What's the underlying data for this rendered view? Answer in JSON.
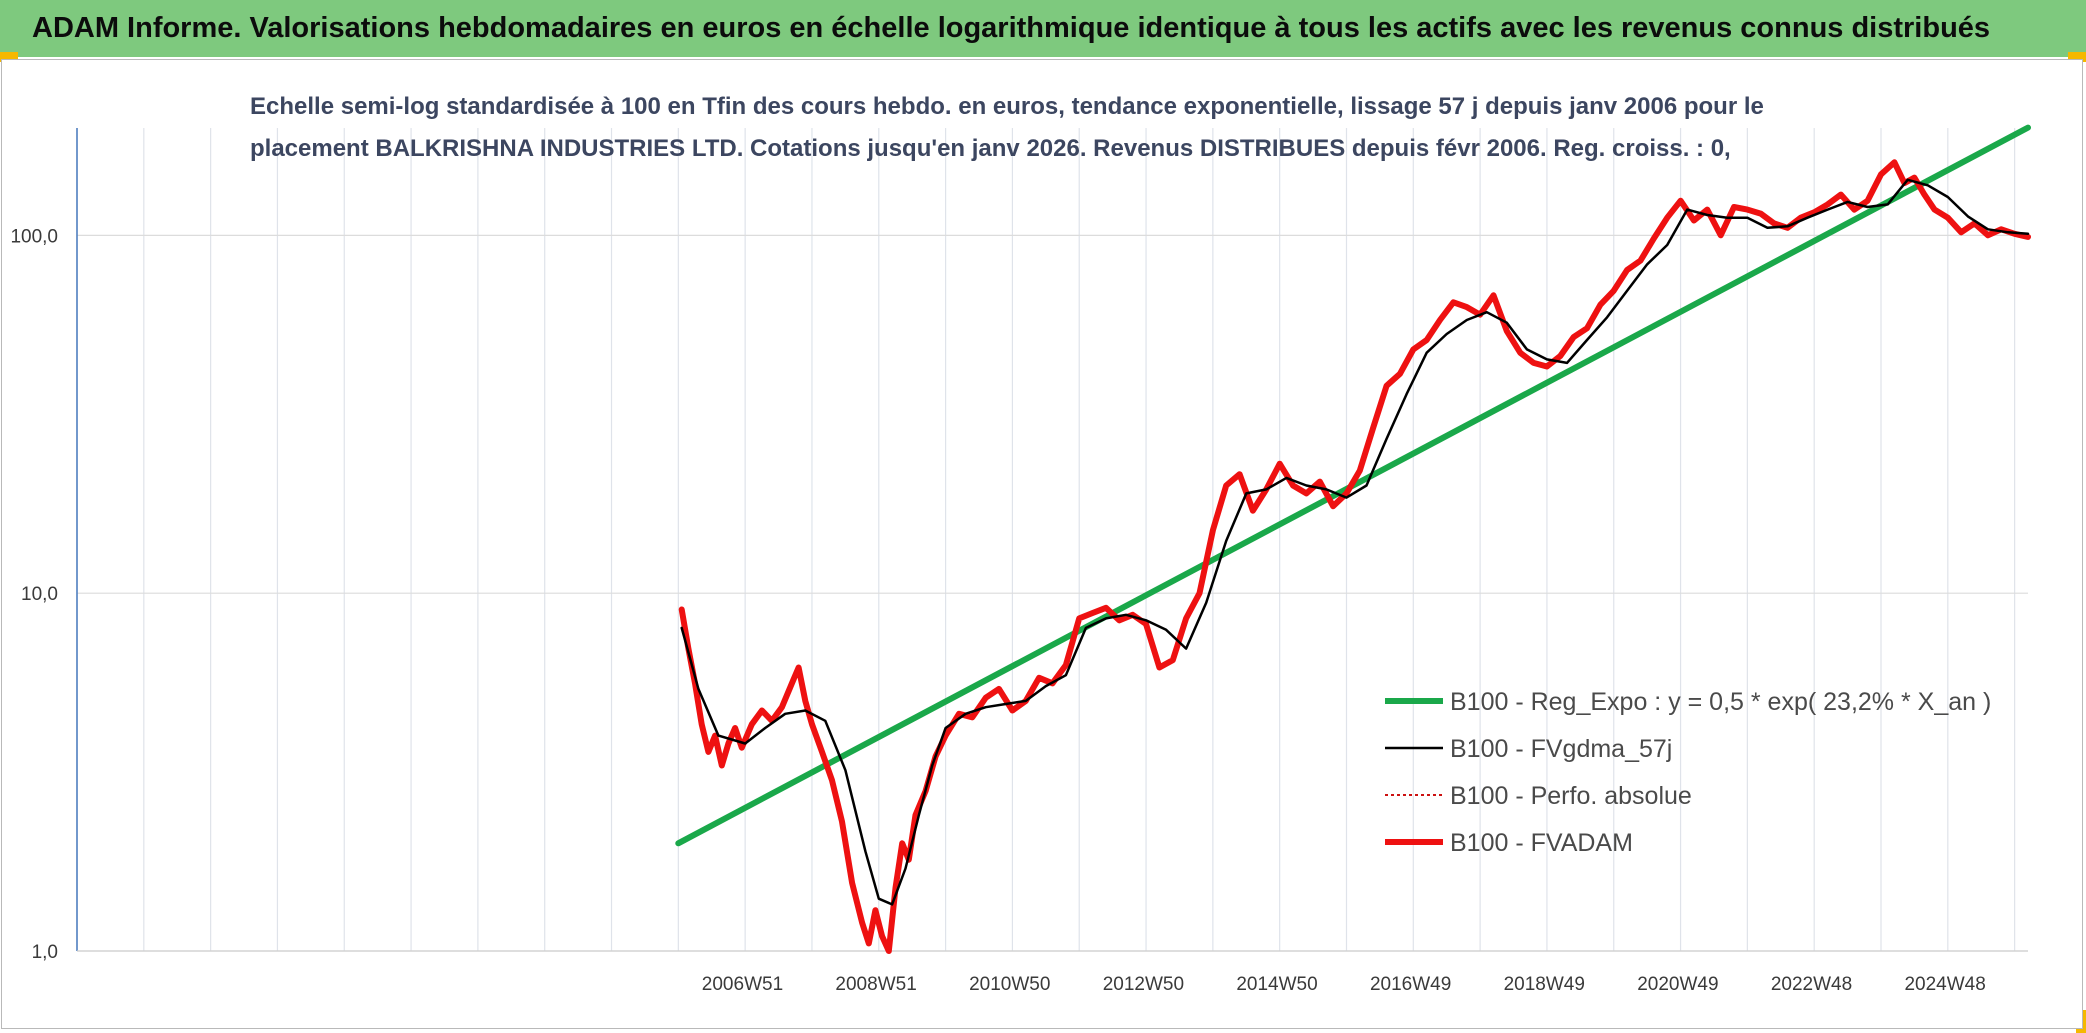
{
  "banner": {
    "title": "ADAM Informe. Valorisations hebdomadaires en euros en échelle logarithmique identique à tous les actifs avec les revenus connus distribués",
    "color": "#7ec97e"
  },
  "chart_data": {
    "type": "line",
    "title_line1": "Echelle semi-log standardisée à 100 en Tfin des cours hebdo. en euros, tendance exponentielle, lissage 57 j depuis janv 2006 pour le",
    "title_line2": "placement BALKRISHNA INDUSTRIES LTD. Cotations jusqu'en janv 2026. Revenus DISTRIBUES depuis févr 2006. Reg. croiss. : 0,",
    "y_scale": "log",
    "ylim": [
      1,
      200
    ],
    "y_ticks": [
      {
        "value": 1,
        "label": "1,0"
      },
      {
        "value": 10,
        "label": "10,0"
      },
      {
        "value": 100,
        "label": "100,0"
      }
    ],
    "xlim": [
      1997.0,
      2026.2
    ],
    "x_ticks": [
      {
        "value": 2006.96,
        "label": "2006W51"
      },
      {
        "value": 2008.96,
        "label": "2008W51"
      },
      {
        "value": 2010.96,
        "label": "2010W50"
      },
      {
        "value": 2012.96,
        "label": "2012W50"
      },
      {
        "value": 2014.96,
        "label": "2014W50"
      },
      {
        "value": 2016.96,
        "label": "2016W49"
      },
      {
        "value": 2018.96,
        "label": "2018W49"
      },
      {
        "value": 2020.96,
        "label": "2020W49"
      },
      {
        "value": 2022.96,
        "label": "2022W48"
      },
      {
        "value": 2024.96,
        "label": "2024W48"
      }
    ],
    "grid": true,
    "legend_position": "right",
    "series": [
      {
        "name": "B100 - Reg_Expo : y = 0,5 * exp( 23,2% *  X_an )",
        "color": "#1aa84a",
        "style": "solid-thick",
        "x": [
          2006.0,
          2026.2
        ],
        "y": [
          2.0,
          200.0
        ]
      },
      {
        "name": "B100 - FVgdma_57j",
        "color": "#000000",
        "style": "solid-thin",
        "x": [
          2006.05,
          2006.3,
          2006.6,
          2007.0,
          2007.3,
          2007.6,
          2007.9,
          2008.2,
          2008.5,
          2008.8,
          2009.0,
          2009.2,
          2009.4,
          2009.6,
          2009.8,
          2010.0,
          2010.3,
          2010.6,
          2010.9,
          2011.2,
          2011.5,
          2011.8,
          2012.1,
          2012.4,
          2012.7,
          2013.0,
          2013.3,
          2013.6,
          2013.9,
          2014.2,
          2014.5,
          2014.8,
          2015.1,
          2015.4,
          2015.7,
          2016.0,
          2016.3,
          2016.6,
          2016.9,
          2017.2,
          2017.5,
          2017.8,
          2018.1,
          2018.4,
          2018.7,
          2019.0,
          2019.3,
          2019.6,
          2019.9,
          2020.2,
          2020.5,
          2020.8,
          2021.1,
          2021.4,
          2021.7,
          2022.0,
          2022.3,
          2022.6,
          2022.9,
          2023.2,
          2023.5,
          2023.8,
          2024.1,
          2024.4,
          2024.7,
          2025.0,
          2025.3,
          2025.6,
          2025.9,
          2026.2
        ],
        "y": [
          8.0,
          5.4,
          4.0,
          3.8,
          4.2,
          4.6,
          4.7,
          4.4,
          3.2,
          1.9,
          1.4,
          1.35,
          1.7,
          2.4,
          3.3,
          4.2,
          4.6,
          4.8,
          4.9,
          5.0,
          5.5,
          5.9,
          8.0,
          8.5,
          8.7,
          8.4,
          7.9,
          7.0,
          9.4,
          14.0,
          19.0,
          19.5,
          21.0,
          20.0,
          19.5,
          18.5,
          20.0,
          27.0,
          36.0,
          47.0,
          53.0,
          58.0,
          61.0,
          57.0,
          48.0,
          45.0,
          44.0,
          51.0,
          59.0,
          70.0,
          83.0,
          94.0,
          118.0,
          114.0,
          112.0,
          112.0,
          105.0,
          106.0,
          112.0,
          118.0,
          124.0,
          120.0,
          122.0,
          143.0,
          138.0,
          128.0,
          113.0,
          104.0,
          102.0,
          101.0
        ]
      },
      {
        "name": "B100 - Perfo. absolue",
        "color": "#cc1111",
        "style": "dotted",
        "x": [],
        "y": []
      },
      {
        "name": "B100 - FVADAM",
        "color": "#ee1111",
        "style": "solid-thick",
        "x": [
          2006.05,
          2006.15,
          2006.25,
          2006.35,
          2006.45,
          2006.55,
          2006.65,
          2006.75,
          2006.85,
          2006.95,
          2007.1,
          2007.25,
          2007.4,
          2007.55,
          2007.7,
          2007.8,
          2007.9,
          2008.0,
          2008.15,
          2008.3,
          2008.45,
          2008.6,
          2008.75,
          2008.85,
          2008.95,
          2009.05,
          2009.15,
          2009.25,
          2009.35,
          2009.45,
          2009.55,
          2009.7,
          2009.85,
          2010.0,
          2010.2,
          2010.4,
          2010.6,
          2010.8,
          2011.0,
          2011.2,
          2011.4,
          2011.6,
          2011.8,
          2012.0,
          2012.2,
          2012.4,
          2012.6,
          2012.8,
          2013.0,
          2013.2,
          2013.4,
          2013.6,
          2013.8,
          2014.0,
          2014.2,
          2014.4,
          2014.6,
          2014.8,
          2015.0,
          2015.2,
          2015.4,
          2015.6,
          2015.8,
          2016.0,
          2016.2,
          2016.4,
          2016.6,
          2016.8,
          2017.0,
          2017.2,
          2017.4,
          2017.6,
          2017.8,
          2018.0,
          2018.2,
          2018.4,
          2018.6,
          2018.8,
          2019.0,
          2019.2,
          2019.4,
          2019.6,
          2019.8,
          2020.0,
          2020.2,
          2020.4,
          2020.6,
          2020.8,
          2021.0,
          2021.2,
          2021.4,
          2021.6,
          2021.8,
          2022.0,
          2022.2,
          2022.4,
          2022.6,
          2022.8,
          2023.0,
          2023.2,
          2023.4,
          2023.6,
          2023.8,
          2024.0,
          2024.2,
          2024.35,
          2024.5,
          2024.65,
          2024.8,
          2025.0,
          2025.2,
          2025.4,
          2025.6,
          2025.8,
          2026.0,
          2026.2
        ],
        "y": [
          9.0,
          7.0,
          5.6,
          4.3,
          3.6,
          4.0,
          3.3,
          3.8,
          4.2,
          3.7,
          4.3,
          4.7,
          4.4,
          4.8,
          5.6,
          6.2,
          5.0,
          4.3,
          3.6,
          3.0,
          2.3,
          1.55,
          1.2,
          1.05,
          1.3,
          1.1,
          1.0,
          1.5,
          2.0,
          1.8,
          2.4,
          2.8,
          3.5,
          4.0,
          4.6,
          4.5,
          5.1,
          5.4,
          4.7,
          5.0,
          5.8,
          5.6,
          6.3,
          8.5,
          8.8,
          9.1,
          8.4,
          8.7,
          8.2,
          6.2,
          6.5,
          8.5,
          10.0,
          15.0,
          20.0,
          21.5,
          17.0,
          19.5,
          23.0,
          20.0,
          19.0,
          20.5,
          17.5,
          19.0,
          22.0,
          29.0,
          38.0,
          41.0,
          48.0,
          51.0,
          58.0,
          65.0,
          63.0,
          60.0,
          68.0,
          54.0,
          47.0,
          44.0,
          43.0,
          46.0,
          52.0,
          55.0,
          64.0,
          70.0,
          80.0,
          85.0,
          98.0,
          112.0,
          125.0,
          110.0,
          118.0,
          100.0,
          120.0,
          118.0,
          115.0,
          108.0,
          105.0,
          112.0,
          116.0,
          122.0,
          130.0,
          118.0,
          125.0,
          148.0,
          160.0,
          140.0,
          145.0,
          130.0,
          118.0,
          112.0,
          102.0,
          108.0,
          100.0,
          104.0,
          101.0,
          99.0
        ]
      }
    ]
  }
}
